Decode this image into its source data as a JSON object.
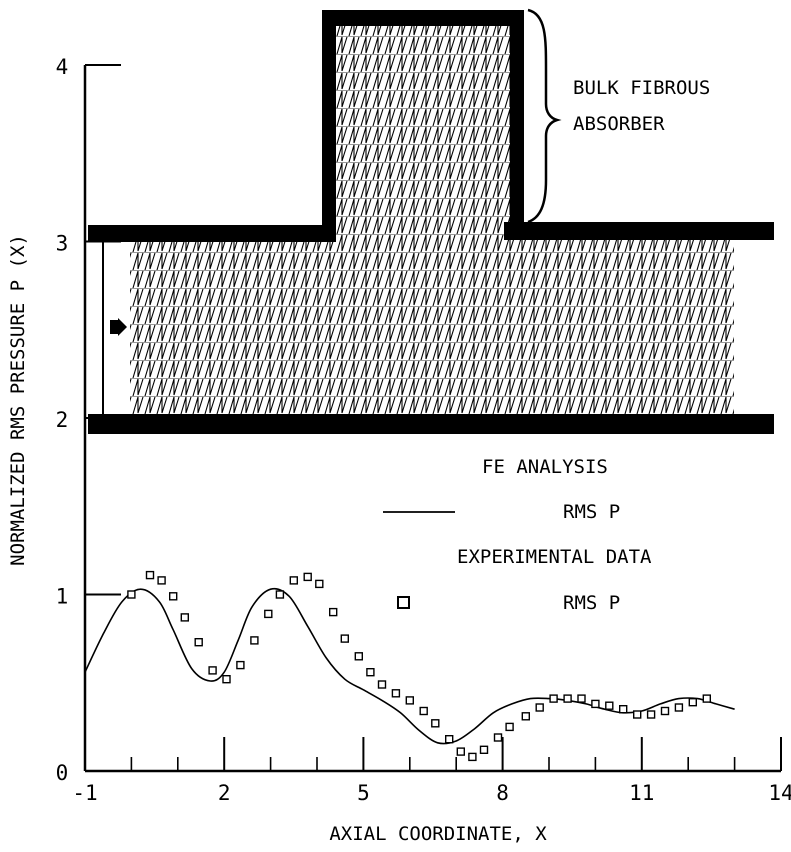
{
  "chart_data": {
    "type": "line",
    "xlabel": "AXIAL COORDINATE, X",
    "ylabel": "NORMALIZED RMS PRESSURE P (X)",
    "xlim": [
      -1,
      14
    ],
    "ylim": [
      0,
      4
    ],
    "x_ticks": [
      -1,
      2,
      5,
      8,
      11,
      14
    ],
    "x_tick_labels": [
      "-1",
      "2",
      "5",
      "8",
      "11",
      "14"
    ],
    "y_ticks": [
      0,
      1,
      2,
      3,
      4
    ],
    "y_tick_labels": [
      "0",
      "1",
      "2",
      "3",
      "4"
    ],
    "grid": false,
    "legend": {
      "placement": "right-middle",
      "fe_heading": "FE ANALYSIS",
      "fe_entry": "RMS P",
      "exp_heading": "EXPERIMENTAL DATA",
      "exp_entry": "RMS P"
    },
    "annotation": {
      "line1": "BULK FIBROUS",
      "line2": "ABSORBER"
    },
    "series": [
      {
        "kind": "line",
        "x": [
          -1.0,
          -0.6,
          -0.2,
          0.2,
          0.6,
          0.9,
          1.3,
          1.7,
          2.0,
          2.3,
          2.6,
          3.0,
          3.4,
          3.8,
          4.2,
          4.6,
          5.0,
          5.4,
          5.8,
          6.2,
          6.6,
          7.0,
          7.4,
          7.8,
          8.2,
          8.6,
          9.0,
          9.4,
          9.8,
          10.2,
          10.6,
          11.0,
          11.4,
          11.8,
          12.2,
          12.6,
          13.0
        ],
        "y": [
          0.56,
          0.78,
          0.96,
          1.03,
          0.96,
          0.8,
          0.58,
          0.51,
          0.56,
          0.74,
          0.93,
          1.03,
          0.99,
          0.82,
          0.64,
          0.52,
          0.46,
          0.4,
          0.33,
          0.23,
          0.16,
          0.17,
          0.24,
          0.33,
          0.38,
          0.41,
          0.41,
          0.4,
          0.38,
          0.35,
          0.33,
          0.34,
          0.38,
          0.41,
          0.41,
          0.38,
          0.35
        ]
      },
      {
        "kind": "scatter",
        "x": [
          0.0,
          0.4,
          0.65,
          0.9,
          1.15,
          1.45,
          1.75,
          2.05,
          2.35,
          2.65,
          2.95,
          3.2,
          3.5,
          3.8,
          4.05,
          4.35,
          4.6,
          4.9,
          5.15,
          5.4,
          5.7,
          6.0,
          6.3,
          6.55,
          6.85,
          7.1,
          7.35,
          7.6,
          7.9,
          8.15,
          8.5,
          8.8,
          9.1,
          9.4,
          9.7,
          10.0,
          10.3,
          10.6,
          10.9,
          11.2,
          11.5,
          11.8,
          12.1,
          12.4
        ],
        "y": [
          1.0,
          1.11,
          1.08,
          0.99,
          0.87,
          0.73,
          0.57,
          0.52,
          0.6,
          0.74,
          0.89,
          1.0,
          1.08,
          1.1,
          1.06,
          0.9,
          0.75,
          0.65,
          0.56,
          0.49,
          0.44,
          0.4,
          0.34,
          0.27,
          0.18,
          0.11,
          0.08,
          0.12,
          0.19,
          0.25,
          0.31,
          0.36,
          0.41,
          0.41,
          0.41,
          0.38,
          0.37,
          0.35,
          0.32,
          0.32,
          0.34,
          0.36,
          0.39,
          0.41
        ]
      }
    ]
  }
}
